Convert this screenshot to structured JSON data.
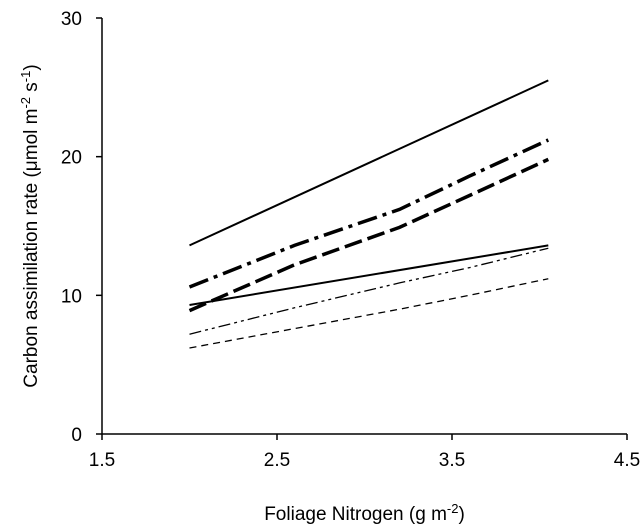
{
  "chart_data": {
    "type": "line",
    "title": "",
    "xlabel": {
      "text": "Foliage Nitrogen (g m",
      "sup": "-2",
      "tail": ")"
    },
    "ylabel": {
      "pre": "Carbon assimilation rate (μmol m",
      "sup1": "-2",
      "mid": " s",
      "sup2": "-1",
      "tail": ")"
    },
    "xlim": [
      1.5,
      4.5
    ],
    "ylim": [
      0,
      30
    ],
    "xticks": [
      "1.5",
      "2.5",
      "3.5",
      "4.5"
    ],
    "yticks": [
      "0",
      "10",
      "20",
      "30"
    ],
    "grid": false,
    "legend": "none",
    "series": [
      {
        "style": "solid-thin",
        "x": [
          2.0,
          4.05
        ],
        "y": [
          13.6,
          25.5
        ]
      },
      {
        "style": "dashdot-thick",
        "x": [
          2.0,
          2.6,
          3.2,
          3.6,
          4.05
        ],
        "y": [
          10.6,
          13.6,
          16.2,
          18.6,
          21.2
        ]
      },
      {
        "style": "dashed-thick",
        "x": [
          2.0,
          2.6,
          3.2,
          3.6,
          4.05
        ],
        "y": [
          8.9,
          12.2,
          14.9,
          17.2,
          19.8
        ]
      },
      {
        "style": "solid-thin",
        "x": [
          2.0,
          4.05
        ],
        "y": [
          9.3,
          13.6
        ]
      },
      {
        "style": "dashdotdot-thin",
        "x": [
          2.0,
          2.6,
          3.2,
          3.6,
          4.05
        ],
        "y": [
          7.2,
          9.1,
          10.9,
          12.0,
          13.4
        ]
      },
      {
        "style": "dashed-thin",
        "x": [
          2.0,
          2.6,
          3.2,
          3.6,
          4.05
        ],
        "y": [
          6.2,
          7.6,
          9.0,
          10.0,
          11.2
        ]
      }
    ]
  }
}
